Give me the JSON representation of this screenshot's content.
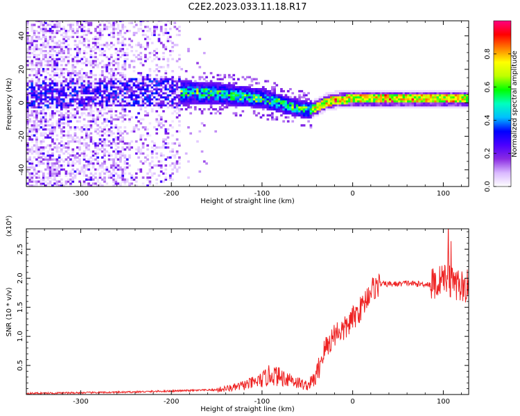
{
  "title": "C2E2.2023.033.11.18.R17",
  "chart_data": [
    {
      "type": "heatmap",
      "xlabel": "Height of straight line (km)",
      "ylabel": "Frequency (Hz)",
      "xlim": [
        -360,
        128
      ],
      "ylim": [
        -50,
        49
      ],
      "xticks": [
        -300,
        -200,
        -100,
        0,
        100
      ],
      "yticks": [
        -40,
        -20,
        0,
        20,
        40
      ],
      "colorbar": {
        "label": "Normalized spectral amplitude",
        "range": [
          0,
          1
        ],
        "ticks": [
          "0.0",
          "0.2",
          "0.4",
          "0.6",
          "0.8"
        ],
        "colormap": [
          "#ffffff",
          "#d9b8ff",
          "#8a2be2",
          "#4b00ff",
          "#0000ff",
          "#00bfff",
          "#00ffbf",
          "#00ff00",
          "#bfff00",
          "#ffff00",
          "#ff8000",
          "#ff0000",
          "#ff0080"
        ]
      },
      "ridge_center_hz": {
        "x": [
          -360,
          -300,
          -250,
          -200,
          -150,
          -100,
          -75,
          -50,
          -40,
          -30,
          -20,
          0,
          50,
          100,
          128
        ],
        "y": [
          4,
          5,
          6,
          6,
          5,
          2,
          -2,
          -5,
          -3,
          0,
          1,
          2,
          2,
          2,
          2
        ]
      }
    },
    {
      "type": "line",
      "xlabel": "Height of straight line (km)",
      "ylabel": "SNR (10 * v/v)",
      "y_multiplier": "(x10⁴)",
      "xlim": [
        -360,
        128
      ],
      "ylim": [
        0,
        2.85
      ],
      "xticks": [
        -300,
        -200,
        -100,
        0,
        100
      ],
      "yticks": [
        "0.5",
        "1.0",
        "1.5",
        "2.0",
        "2.5"
      ],
      "color": "#ee2222",
      "series": [
        {
          "x": [
            -360,
            -300,
            -250,
            -200,
            -150,
            -130,
            -110,
            -100,
            -90,
            -80,
            -70,
            -60,
            -50,
            -40,
            -35,
            -30,
            -25,
            -20,
            -15,
            -10,
            -5,
            0,
            5,
            10,
            15,
            20,
            25,
            30,
            40,
            50,
            60,
            70,
            80,
            90,
            100,
            105,
            110,
            115,
            120,
            128
          ],
          "y": [
            0.02,
            0.03,
            0.04,
            0.06,
            0.08,
            0.12,
            0.2,
            0.25,
            0.35,
            0.3,
            0.28,
            0.2,
            0.15,
            0.3,
            0.6,
            0.8,
            0.9,
            1.05,
            1.1,
            1.1,
            1.2,
            1.3,
            1.4,
            1.5,
            1.65,
            1.8,
            1.85,
            1.9,
            1.9,
            1.9,
            1.92,
            1.9,
            1.9,
            1.9,
            1.95,
            2.05,
            1.9,
            1.9,
            1.86,
            1.85
          ]
        }
      ]
    }
  ]
}
